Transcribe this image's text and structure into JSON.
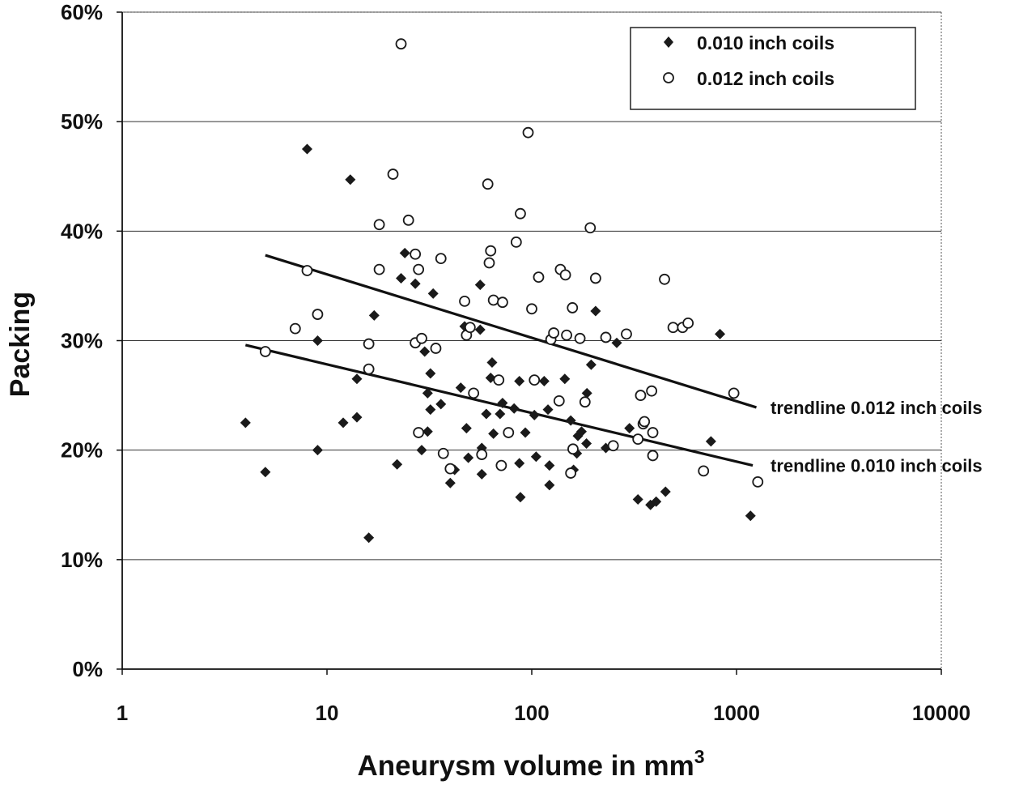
{
  "chart_data": {
    "type": "scatter",
    "title": "",
    "xlabel": "Aneurysm volume in mm",
    "xlabel_superscript": "3",
    "ylabel": "Packing",
    "x_scale": "log",
    "xlim": [
      1,
      10000
    ],
    "ylim": [
      0,
      0.6
    ],
    "x_ticks": [
      1,
      10,
      100,
      1000,
      10000
    ],
    "x_tick_labels": [
      "1",
      "10",
      "100",
      "1000",
      "10000"
    ],
    "y_ticks": [
      0,
      0.1,
      0.2,
      0.3,
      0.4,
      0.5,
      0.6
    ],
    "y_tick_labels": [
      "0%",
      "10%",
      "20%",
      "30%",
      "40%",
      "50%",
      "60%"
    ],
    "grid": "horizontal",
    "legend_position": "top-right",
    "colors": {
      "series_010": "#1a1a1a",
      "series_012": "#1a1a1a",
      "trendline": "#111111"
    },
    "series": [
      {
        "name": "0.010 inch coils",
        "marker": "filled-diamond",
        "points": [
          [
            4,
            0.225
          ],
          [
            5,
            0.18
          ],
          [
            8,
            0.475
          ],
          [
            9,
            0.3
          ],
          [
            9,
            0.2
          ],
          [
            12,
            0.225
          ],
          [
            13,
            0.447
          ],
          [
            14,
            0.265
          ],
          [
            14,
            0.23
          ],
          [
            16,
            0.12
          ],
          [
            17,
            0.323
          ],
          [
            22,
            0.187
          ],
          [
            23,
            0.357
          ],
          [
            24,
            0.38
          ],
          [
            27,
            0.352
          ],
          [
            29,
            0.2
          ],
          [
            30,
            0.29
          ],
          [
            31,
            0.252
          ],
          [
            31,
            0.217
          ],
          [
            32,
            0.27
          ],
          [
            32,
            0.237
          ],
          [
            33,
            0.343
          ],
          [
            36,
            0.242
          ],
          [
            40,
            0.17
          ],
          [
            42,
            0.182
          ],
          [
            45,
            0.257
          ],
          [
            47,
            0.313
          ],
          [
            48,
            0.22
          ],
          [
            49,
            0.193
          ],
          [
            56,
            0.31
          ],
          [
            56,
            0.351
          ],
          [
            57,
            0.202
          ],
          [
            57,
            0.178
          ],
          [
            60,
            0.233
          ],
          [
            63,
            0.266
          ],
          [
            64,
            0.28
          ],
          [
            65,
            0.215
          ],
          [
            70,
            0.233
          ],
          [
            72,
            0.243
          ],
          [
            82,
            0.238
          ],
          [
            87,
            0.263
          ],
          [
            87,
            0.188
          ],
          [
            88,
            0.157
          ],
          [
            93,
            0.216
          ],
          [
            103,
            0.232
          ],
          [
            105,
            0.194
          ],
          [
            115,
            0.263
          ],
          [
            120,
            0.237
          ],
          [
            122,
            0.186
          ],
          [
            122,
            0.168
          ],
          [
            145,
            0.265
          ],
          [
            155,
            0.227
          ],
          [
            160,
            0.182
          ],
          [
            166,
            0.197
          ],
          [
            168,
            0.213
          ],
          [
            175,
            0.217
          ],
          [
            185,
            0.206
          ],
          [
            186,
            0.252
          ],
          [
            195,
            0.278
          ],
          [
            205,
            0.327
          ],
          [
            230,
            0.202
          ],
          [
            260,
            0.298
          ],
          [
            300,
            0.22
          ],
          [
            330,
            0.155
          ],
          [
            350,
            0.226
          ],
          [
            380,
            0.15
          ],
          [
            405,
            0.153
          ],
          [
            450,
            0.162
          ],
          [
            750,
            0.208
          ],
          [
            830,
            0.306
          ],
          [
            1170,
            0.14
          ]
        ]
      },
      {
        "name": "0.012 inch coils",
        "marker": "open-circle",
        "points": [
          [
            5,
            0.29
          ],
          [
            7,
            0.311
          ],
          [
            8,
            0.364
          ],
          [
            9,
            0.324
          ],
          [
            16,
            0.297
          ],
          [
            16,
            0.274
          ],
          [
            18,
            0.406
          ],
          [
            18,
            0.365
          ],
          [
            21,
            0.452
          ],
          [
            23,
            0.571
          ],
          [
            25,
            0.41
          ],
          [
            27,
            0.379
          ],
          [
            27,
            0.298
          ],
          [
            28,
            0.216
          ],
          [
            28,
            0.365
          ],
          [
            29,
            0.302
          ],
          [
            34,
            0.293
          ],
          [
            36,
            0.375
          ],
          [
            37,
            0.197
          ],
          [
            40,
            0.183
          ],
          [
            47,
            0.336
          ],
          [
            48,
            0.305
          ],
          [
            50,
            0.312
          ],
          [
            52,
            0.252
          ],
          [
            57,
            0.196
          ],
          [
            61,
            0.443
          ],
          [
            62,
            0.371
          ],
          [
            63,
            0.382
          ],
          [
            65,
            0.337
          ],
          [
            69,
            0.264
          ],
          [
            71,
            0.186
          ],
          [
            72,
            0.335
          ],
          [
            77,
            0.216
          ],
          [
            84,
            0.39
          ],
          [
            88,
            0.416
          ],
          [
            96,
            0.49
          ],
          [
            100,
            0.329
          ],
          [
            103,
            0.264
          ],
          [
            108,
            0.358
          ],
          [
            124,
            0.301
          ],
          [
            128,
            0.307
          ],
          [
            136,
            0.245
          ],
          [
            138,
            0.365
          ],
          [
            146,
            0.36
          ],
          [
            148,
            0.305
          ],
          [
            155,
            0.179
          ],
          [
            158,
            0.33
          ],
          [
            159,
            0.201
          ],
          [
            172,
            0.302
          ],
          [
            182,
            0.244
          ],
          [
            193,
            0.403
          ],
          [
            205,
            0.357
          ],
          [
            230,
            0.303
          ],
          [
            250,
            0.204
          ],
          [
            290,
            0.306
          ],
          [
            330,
            0.21
          ],
          [
            340,
            0.25
          ],
          [
            350,
            0.224
          ],
          [
            355,
            0.226
          ],
          [
            385,
            0.254
          ],
          [
            390,
            0.216
          ],
          [
            390,
            0.195
          ],
          [
            445,
            0.356
          ],
          [
            490,
            0.312
          ],
          [
            545,
            0.312
          ],
          [
            580,
            0.316
          ],
          [
            690,
            0.181
          ],
          [
            970,
            0.252
          ],
          [
            1270,
            0.171
          ]
        ]
      }
    ],
    "trendlines": [
      {
        "name": "trendline 0.012 inch coils",
        "x": [
          5,
          1250
        ],
        "y": [
          0.378,
          0.239
        ]
      },
      {
        "name": "trendline 0.010 inch coils",
        "x": [
          4,
          1200
        ],
        "y": [
          0.296,
          0.186
        ]
      }
    ],
    "legend_entries": [
      "0.010 inch coils",
      "0.012 inch coils"
    ]
  }
}
